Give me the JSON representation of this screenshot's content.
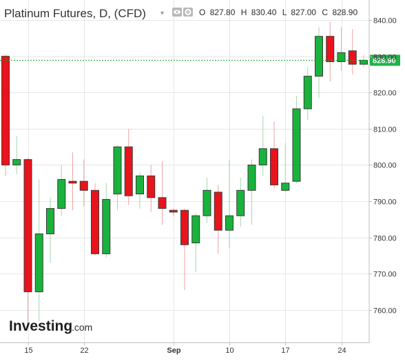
{
  "header": {
    "title": "Platinum Futures, D, (CFD)",
    "ohlc": {
      "open_label": "O",
      "open": "827.80",
      "high_label": "H",
      "high": "830.40",
      "low_label": "L",
      "low": "827.00",
      "close_label": "C",
      "close": "828.90"
    }
  },
  "logo": {
    "main": "Investing",
    "domain": ".com"
  },
  "colors": {
    "up": "#19b33c",
    "down": "#e8141c",
    "wick_up": "#a5d6b0",
    "wick_down": "#f0a0a4",
    "grid": "#e6e6e6",
    "axis": "#bdbdbd",
    "current_price_line": "#19a62f",
    "current_price_tag": "#21b34a"
  },
  "icons": [
    "chevron-down-icon",
    "eye-icon",
    "gear-icon"
  ],
  "chart_data": {
    "type": "candlestick",
    "title": "Platinum Futures, D, (CFD)",
    "xlabel": "",
    "ylabel": "",
    "y_range": [
      752,
      844
    ],
    "y_ticks": [
      760,
      770,
      780,
      790,
      800,
      810,
      820,
      830,
      840
    ],
    "y_tick_labels": [
      "760.00",
      "770.00",
      "780.00",
      "790.00",
      "800.00",
      "810.00",
      "820.00",
      "830.00",
      "840.00"
    ],
    "x_ticks": [
      {
        "index": 2,
        "label": "15",
        "bold": false
      },
      {
        "index": 7,
        "label": "22",
        "bold": false
      },
      {
        "index": 15,
        "label": "Sep",
        "bold": true
      },
      {
        "index": 20,
        "label": "10",
        "bold": false
      },
      {
        "index": 25,
        "label": "17",
        "bold": false
      },
      {
        "index": 30,
        "label": "24",
        "bold": false
      }
    ],
    "current_price": {
      "value": 828.9,
      "label": "828.90"
    },
    "grid": true,
    "candles": [
      {
        "o": 830.0,
        "h": 830.5,
        "l": 797.0,
        "c": 800.0
      },
      {
        "o": 800.0,
        "h": 808.0,
        "l": 797.5,
        "c": 801.5
      },
      {
        "o": 801.5,
        "h": 802.0,
        "l": 756.0,
        "c": 765.0
      },
      {
        "o": 765.0,
        "h": 796.0,
        "l": 757.0,
        "c": 781.0
      },
      {
        "o": 781.0,
        "h": 791.0,
        "l": 773.0,
        "c": 788.0
      },
      {
        "o": 788.0,
        "h": 800.0,
        "l": 786.0,
        "c": 796.0
      },
      {
        "o": 795.5,
        "h": 803.5,
        "l": 787.5,
        "c": 795.0
      },
      {
        "o": 795.5,
        "h": 801.5,
        "l": 788.5,
        "c": 793.0
      },
      {
        "o": 793.0,
        "h": 795.0,
        "l": 775.0,
        "c": 775.5
      },
      {
        "o": 775.5,
        "h": 795.0,
        "l": 774.5,
        "c": 790.5
      },
      {
        "o": 792.0,
        "h": 805.5,
        "l": 787.5,
        "c": 805.0
      },
      {
        "o": 805.0,
        "h": 810.0,
        "l": 789.0,
        "c": 791.5
      },
      {
        "o": 792.0,
        "h": 798.0,
        "l": 788.0,
        "c": 797.0
      },
      {
        "o": 797.0,
        "h": 800.0,
        "l": 787.0,
        "c": 791.0
      },
      {
        "o": 791.0,
        "h": 801.0,
        "l": 783.5,
        "c": 788.0
      },
      {
        "o": 787.5,
        "h": 788.0,
        "l": 786.0,
        "c": 787.0
      },
      {
        "o": 787.5,
        "h": 788.0,
        "l": 765.5,
        "c": 778.0
      },
      {
        "o": 778.5,
        "h": 786.5,
        "l": 770.5,
        "c": 786.0
      },
      {
        "o": 786.0,
        "h": 796.5,
        "l": 784.0,
        "c": 793.0
      },
      {
        "o": 792.5,
        "h": 794.5,
        "l": 775.5,
        "c": 782.0
      },
      {
        "o": 782.0,
        "h": 801.5,
        "l": 777.0,
        "c": 786.0
      },
      {
        "o": 786.0,
        "h": 796.5,
        "l": 783.0,
        "c": 793.0
      },
      {
        "o": 793.0,
        "h": 801.5,
        "l": 783.5,
        "c": 800.0
      },
      {
        "o": 800.0,
        "h": 813.5,
        "l": 797.0,
        "c": 804.5
      },
      {
        "o": 804.5,
        "h": 812.0,
        "l": 793.5,
        "c": 794.5
      },
      {
        "o": 793.0,
        "h": 806.0,
        "l": 792.5,
        "c": 795.0
      },
      {
        "o": 795.5,
        "h": 819.0,
        "l": 795.0,
        "c": 815.5
      },
      {
        "o": 815.5,
        "h": 827.0,
        "l": 812.5,
        "c": 824.5
      },
      {
        "o": 824.5,
        "h": 838.0,
        "l": 818.5,
        "c": 835.5
      },
      {
        "o": 835.5,
        "h": 839.5,
        "l": 823.0,
        "c": 828.5
      },
      {
        "o": 828.5,
        "h": 838.0,
        "l": 826.0,
        "c": 831.0
      },
      {
        "o": 831.5,
        "h": 837.5,
        "l": 825.0,
        "c": 827.8
      },
      {
        "o": 827.8,
        "h": 830.4,
        "l": 827.0,
        "c": 828.9
      }
    ]
  }
}
